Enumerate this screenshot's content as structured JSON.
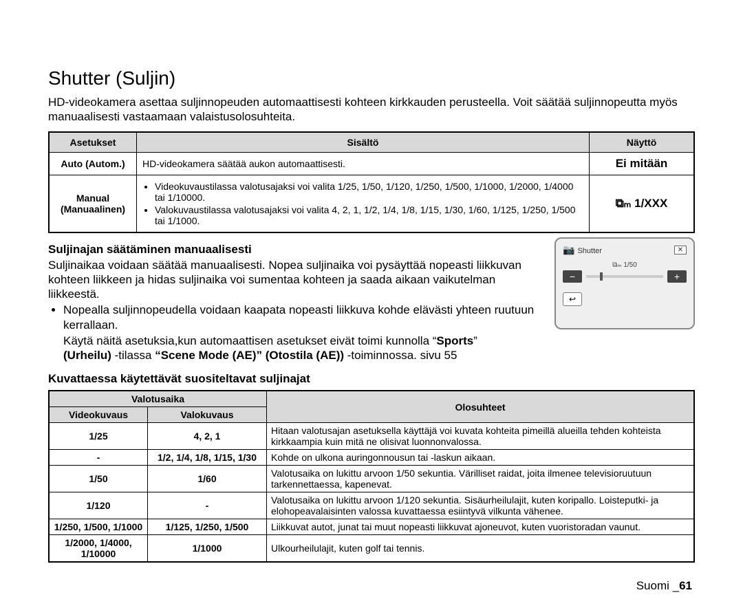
{
  "title": "Shutter (Suljin)",
  "intro": "HD-videokamera asettaa suljinnopeuden automaattisesti kohteen kirkkauden perusteella. Voit säätää suljinnopeutta myös manuaalisesti vastaamaan valaistusolosuhteita.",
  "table1": {
    "headers": [
      "Asetukset",
      "Sisältö",
      "Näyttö"
    ],
    "rows": [
      {
        "setting": "Auto (Autom.)",
        "content_plain": "HD-videokamera säätää aukon automaattisesti.",
        "display": "Ei mitään"
      },
      {
        "setting": "Manual (Manuaalinen)",
        "bullets": [
          "Videokuvaustilassa valotusajaksi voi valita 1/25, 1/50, 1/120, 1/250, 1/500, 1/1000, 1/2000, 1/4000 tai 1/10000.",
          "Valokuvaustilassa valotusajaksi voi valita 4, 2, 1, 1/2, 1/4, 1/8, 1/15, 1/30, 1/60, 1/125, 1/250, 1/500 tai 1/1000."
        ],
        "display_icon": "⧉ₘ",
        "display": "1/XXX"
      }
    ]
  },
  "section2_head": "Suljinajan säätäminen manuaalisesti",
  "section2_para": "Suljinaikaa voidaan säätää manuaalisesti. Nopea suljinaika voi pysäyttää nopeasti liikkuvan kohteen liikkeen ja hidas suljinaika voi sumentaa kohteen ja saada aikaan vaikutelman liikkeestä.",
  "section2_bullet": "Nopealla suljinnopeudella voidaan kaapata nopeasti liikkuva kohde elävästi yhteen ruutuun kerrallaan.",
  "section2_note_pre": "Käytä näitä asetuksia,kun automaattisen asetukset eivät toimi kunnolla “",
  "section2_note_b1": "Sports",
  "section2_note_mid": "” ",
  "section2_note_b2": "(Urheilu)",
  "section2_note_mid2": " -tilassa ",
  "section2_note_b3": "“Scene Mode (AE)” (Otostila (AE))",
  "section2_note_end": " -toiminnossa.    sivu 55",
  "section3_head": "Kuvattaessa käytettävät suositeltavat suljinajat",
  "table2": {
    "hdr_top": "Valotusaika",
    "hdr_video": "Videokuvaus",
    "hdr_photo": "Valokuvaus",
    "hdr_cond": "Olosuhteet",
    "rows": [
      {
        "video": "1/25",
        "photo": "4, 2, 1",
        "desc": "Hitaan valotusajan asetuksella käyttäjä voi kuvata kohteita pimeillä alueilla tehden kohteista kirkkaampia kuin mitä ne olisivat luonnonvalossa."
      },
      {
        "video": "-",
        "photo": "1/2, 1/4, 1/8, 1/15, 1/30",
        "desc": "Kohde on ulkona auringonnousun tai -laskun aikaan."
      },
      {
        "video": "1/50",
        "photo": "1/60",
        "desc": "Valotusaika on lukittu arvoon 1/50 sekuntia. Värilliset raidat, joita ilmenee televisioruutuun tarkennettaessa, kapenevat."
      },
      {
        "video": "1/120",
        "photo": "-",
        "desc": "Valotusaika on lukittu arvoon 1/120 sekuntia. Sisäurheilulajit, kuten koripallo. Loisteputki- ja elohopeavalaisinten valossa kuvattaessa esiintyvä vilkunta vähenee."
      },
      {
        "video": "1/250, 1/500, 1/1000",
        "photo": "1/125, 1/250, 1/500",
        "desc": "Liikkuvat autot, junat tai muut nopeasti liikkuvat ajoneuvot, kuten vuoristoradan vaunut."
      },
      {
        "video": "1/2000, 1/4000, 1/10000",
        "photo": "1/1000",
        "desc": "Ulkourheilulajit, kuten golf tai tennis."
      }
    ]
  },
  "widget": {
    "title": "Shutter",
    "value_icon": "⧉ₘ",
    "value": "1/50",
    "minus": "−",
    "plus": "+",
    "back": "↩",
    "close": "✕",
    "cam_icon": "📷"
  },
  "footer_lang": "Suomi _",
  "footer_page": "61"
}
